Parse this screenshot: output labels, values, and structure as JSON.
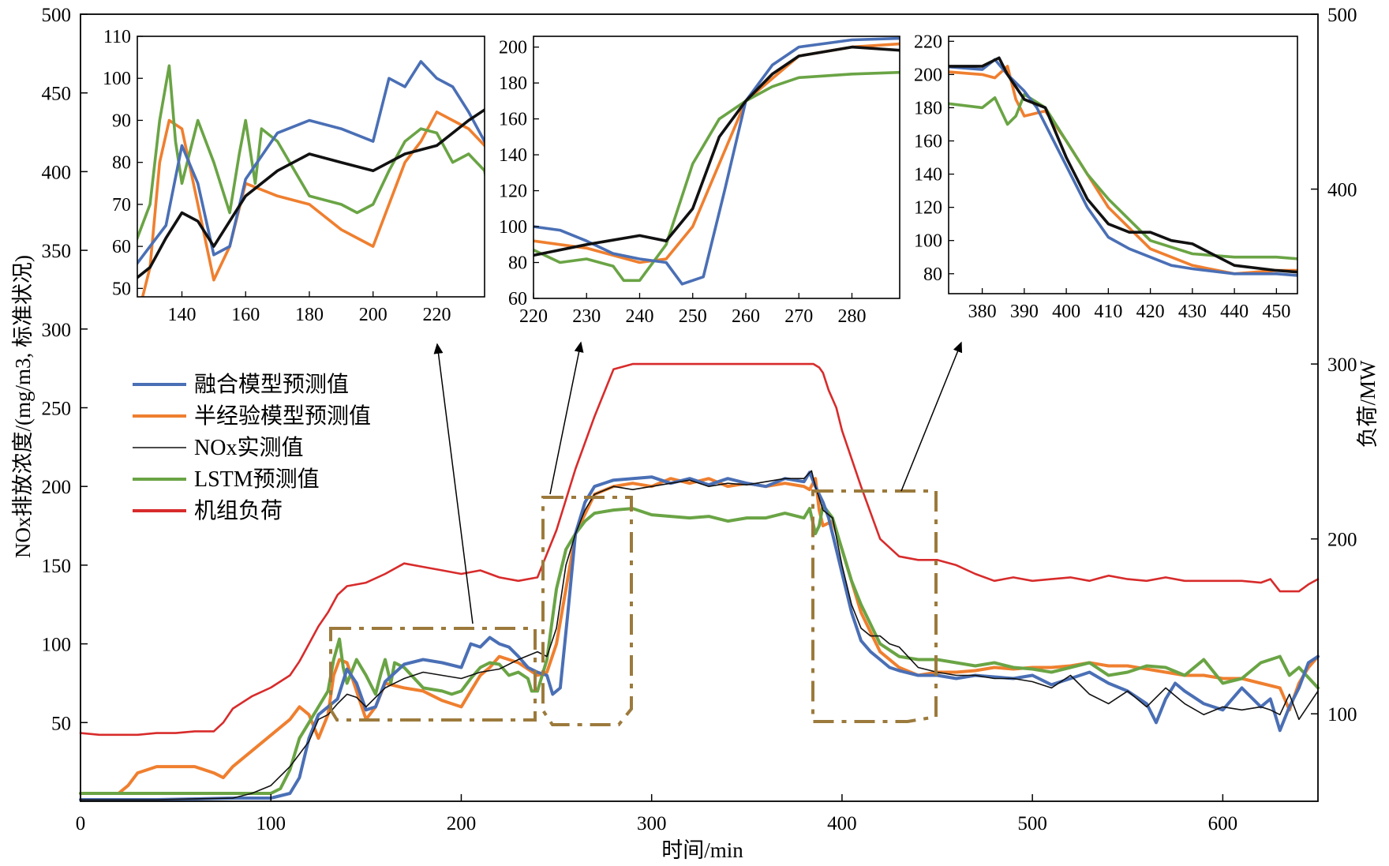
{
  "chart_data": {
    "type": "line",
    "xlabel": "时间/min",
    "ylabel_left": "NOx排放浓度/(mg/m3, 标准状况)",
    "ylabel_right": "负荷/MW",
    "xlim": [
      0,
      650
    ],
    "ylim_left": [
      0,
      500
    ],
    "ylim_right": [
      50,
      500
    ],
    "xticks": [
      0,
      100,
      200,
      300,
      400,
      500,
      600
    ],
    "yticks_left": [
      50,
      100,
      150,
      200,
      250,
      300,
      350,
      400,
      450,
      500
    ],
    "yticks_right": [
      100,
      200,
      300,
      400,
      500
    ],
    "legend_position": "left-middle",
    "series": [
      {
        "key": "fusion",
        "name": "融合模型预测值",
        "color": "#4a6fb5",
        "axis": "left",
        "x": [
          0,
          40,
          80,
          90,
          100,
          110,
          115,
          120,
          125,
          130,
          135,
          140,
          145,
          150,
          155,
          160,
          170,
          180,
          190,
          200,
          205,
          210,
          215,
          220,
          225,
          230,
          235,
          240,
          245,
          248,
          252,
          256,
          260,
          265,
          270,
          280,
          290,
          300,
          310,
          320,
          330,
          340,
          350,
          360,
          370,
          380,
          383,
          386,
          390,
          393,
          397,
          400,
          405,
          410,
          415,
          420,
          425,
          430,
          440,
          450,
          460,
          470,
          480,
          490,
          500,
          510,
          520,
          530,
          540,
          550,
          560,
          565,
          570,
          575,
          580,
          590,
          600,
          610,
          620,
          625,
          630,
          635,
          640,
          645,
          650
        ],
        "y": [
          1,
          1,
          2,
          2,
          2,
          5,
          15,
          40,
          55,
          60,
          65,
          84,
          75,
          58,
          60,
          76,
          87,
          90,
          88,
          85,
          100,
          98,
          104,
          100,
          98,
          92,
          85,
          82,
          80,
          68,
          72,
          120,
          170,
          190,
          200,
          204,
          205,
          206,
          202,
          205,
          201,
          205,
          202,
          200,
          205,
          203,
          209,
          200,
          190,
          180,
          160,
          145,
          120,
          102,
          95,
          90,
          85,
          83,
          80,
          80,
          78,
          80,
          79,
          78,
          80,
          74,
          78,
          82,
          75,
          70,
          62,
          50,
          65,
          75,
          70,
          62,
          58,
          72,
          60,
          65,
          45,
          60,
          72,
          88,
          92
        ]
      },
      {
        "key": "semi",
        "name": "半经验模型预测值",
        "color": "#ef7f2f",
        "axis": "left",
        "x": [
          0,
          20,
          25,
          30,
          40,
          60,
          70,
          75,
          80,
          90,
          100,
          110,
          115,
          120,
          125,
          130,
          133,
          136,
          140,
          145,
          150,
          155,
          160,
          170,
          180,
          190,
          195,
          200,
          205,
          210,
          215,
          220,
          225,
          230,
          235,
          240,
          245,
          250,
          260,
          270,
          280,
          290,
          300,
          310,
          320,
          330,
          340,
          350,
          360,
          370,
          380,
          383,
          386,
          388,
          390,
          395,
          400,
          410,
          420,
          430,
          440,
          450,
          460,
          470,
          480,
          490,
          500,
          510,
          520,
          530,
          540,
          550,
          560,
          570,
          580,
          590,
          600,
          610,
          620,
          630,
          635,
          640,
          645,
          650
        ],
        "y": [
          5,
          5,
          10,
          18,
          22,
          22,
          18,
          15,
          22,
          32,
          42,
          52,
          60,
          55,
          40,
          55,
          80,
          90,
          88,
          70,
          52,
          60,
          75,
          72,
          70,
          64,
          62,
          60,
          70,
          80,
          85,
          92,
          90,
          88,
          84,
          80,
          82,
          100,
          170,
          195,
          200,
          202,
          200,
          205,
          202,
          205,
          200,
          202,
          200,
          202,
          200,
          198,
          205,
          185,
          175,
          178,
          160,
          120,
          95,
          85,
          80,
          82,
          82,
          83,
          85,
          84,
          85,
          85,
          86,
          88,
          86,
          86,
          84,
          82,
          80,
          80,
          78,
          78,
          75,
          72,
          58,
          75,
          85,
          92
        ]
      },
      {
        "key": "measured",
        "name": "NOx实测值",
        "color": "#111111",
        "axis": "left",
        "thin": true,
        "x": [
          0,
          40,
          80,
          90,
          100,
          110,
          120,
          125,
          130,
          135,
          140,
          145,
          150,
          160,
          170,
          180,
          190,
          200,
          210,
          220,
          230,
          240,
          245,
          250,
          255,
          260,
          265,
          270,
          280,
          290,
          300,
          310,
          320,
          330,
          340,
          350,
          360,
          370,
          380,
          384,
          386,
          390,
          395,
          400,
          405,
          410,
          415,
          420,
          425,
          430,
          440,
          450,
          460,
          470,
          480,
          490,
          500,
          510,
          520,
          530,
          540,
          550,
          560,
          570,
          580,
          590,
          600,
          610,
          620,
          625,
          630,
          635,
          640,
          650
        ],
        "y": [
          1,
          1,
          2,
          5,
          10,
          22,
          38,
          52,
          55,
          62,
          68,
          66,
          60,
          72,
          78,
          82,
          80,
          78,
          82,
          84,
          90,
          95,
          92,
          110,
          150,
          170,
          185,
          195,
          200,
          198,
          200,
          202,
          204,
          200,
          202,
          201,
          203,
          205,
          205,
          210,
          200,
          185,
          180,
          150,
          125,
          110,
          105,
          105,
          100,
          98,
          85,
          82,
          80,
          80,
          78,
          78,
          76,
          72,
          80,
          68,
          62,
          70,
          60,
          72,
          62,
          55,
          60,
          58,
          60,
          58,
          55,
          68,
          52,
          70
        ]
      },
      {
        "key": "lstm",
        "name": "LSTM预测值",
        "color": "#6aa445",
        "axis": "left",
        "x": [
          0,
          40,
          80,
          90,
          100,
          105,
          110,
          115,
          120,
          125,
          130,
          133,
          136,
          138,
          140,
          145,
          150,
          155,
          158,
          160,
          163,
          165,
          170,
          180,
          190,
          195,
          200,
          205,
          210,
          215,
          220,
          225,
          230,
          235,
          237,
          240,
          245,
          250,
          255,
          260,
          265,
          270,
          280,
          290,
          300,
          310,
          320,
          330,
          340,
          350,
          360,
          370,
          380,
          383,
          386,
          388,
          390,
          395,
          400,
          405,
          410,
          420,
          430,
          440,
          450,
          460,
          470,
          480,
          490,
          500,
          510,
          520,
          530,
          540,
          550,
          560,
          570,
          580,
          590,
          600,
          610,
          620,
          630,
          635,
          640,
          650
        ],
        "y": [
          5,
          5,
          5,
          5,
          5,
          8,
          20,
          40,
          50,
          60,
          70,
          90,
          103,
          85,
          75,
          90,
          80,
          68,
          82,
          90,
          75,
          88,
          85,
          72,
          70,
          68,
          70,
          78,
          85,
          88,
          87,
          80,
          82,
          78,
          70,
          70,
          90,
          135,
          160,
          170,
          178,
          183,
          185,
          186,
          182,
          181,
          180,
          181,
          178,
          180,
          180,
          183,
          180,
          186,
          170,
          175,
          188,
          180,
          160,
          140,
          125,
          100,
          92,
          90,
          90,
          88,
          86,
          88,
          85,
          84,
          82,
          85,
          88,
          80,
          82,
          86,
          85,
          80,
          90,
          75,
          78,
          88,
          92,
          80,
          85,
          72
        ]
      },
      {
        "key": "load",
        "name": "机组负荷",
        "color": "#d82b2b",
        "axis": "right",
        "x": [
          0,
          10,
          20,
          30,
          40,
          50,
          60,
          70,
          75,
          80,
          90,
          100,
          110,
          115,
          120,
          125,
          130,
          135,
          140,
          150,
          160,
          170,
          180,
          190,
          200,
          210,
          220,
          230,
          240,
          250,
          260,
          270,
          280,
          290,
          300,
          320,
          340,
          360,
          370,
          375,
          380,
          385,
          388,
          390,
          393,
          397,
          400,
          410,
          420,
          430,
          440,
          450,
          460,
          470,
          480,
          490,
          500,
          510,
          520,
          530,
          540,
          550,
          560,
          570,
          580,
          590,
          600,
          610,
          620,
          625,
          630,
          640,
          645,
          650
        ],
        "y": [
          89,
          88,
          88,
          88,
          89,
          89,
          90,
          90,
          95,
          103,
          110,
          115,
          122,
          130,
          140,
          150,
          158,
          168,
          173,
          175,
          180,
          186,
          184,
          182,
          180,
          182,
          178,
          176,
          178,
          205,
          240,
          270,
          297,
          300,
          300,
          300,
          300,
          300,
          300,
          300,
          300,
          300,
          298,
          295,
          285,
          275,
          262,
          230,
          200,
          190,
          188,
          188,
          185,
          180,
          176,
          178,
          176,
          177,
          178,
          176,
          179,
          177,
          176,
          178,
          176,
          176,
          176,
          176,
          175,
          177,
          170,
          170,
          174,
          177
        ]
      }
    ],
    "insets": [
      {
        "xlim": [
          126,
          235
        ],
        "ylim": [
          48,
          110
        ],
        "xticks": [
          140,
          160,
          180,
          200,
          220
        ],
        "yticks": [
          50,
          60,
          70,
          80,
          90,
          100,
          110
        ]
      },
      {
        "xlim": [
          220,
          289
        ],
        "ylim": [
          60,
          206
        ],
        "xticks": [
          220,
          230,
          240,
          250,
          260,
          270,
          280
        ],
        "yticks": [
          60,
          80,
          100,
          120,
          140,
          160,
          180,
          200
        ]
      },
      {
        "xlim": [
          372,
          455
        ],
        "ylim": [
          68,
          223
        ],
        "xticks": [
          380,
          390,
          400,
          410,
          420,
          430,
          440,
          450
        ],
        "yticks": [
          80,
          100,
          120,
          140,
          160,
          180,
          200,
          220
        ]
      }
    ]
  }
}
